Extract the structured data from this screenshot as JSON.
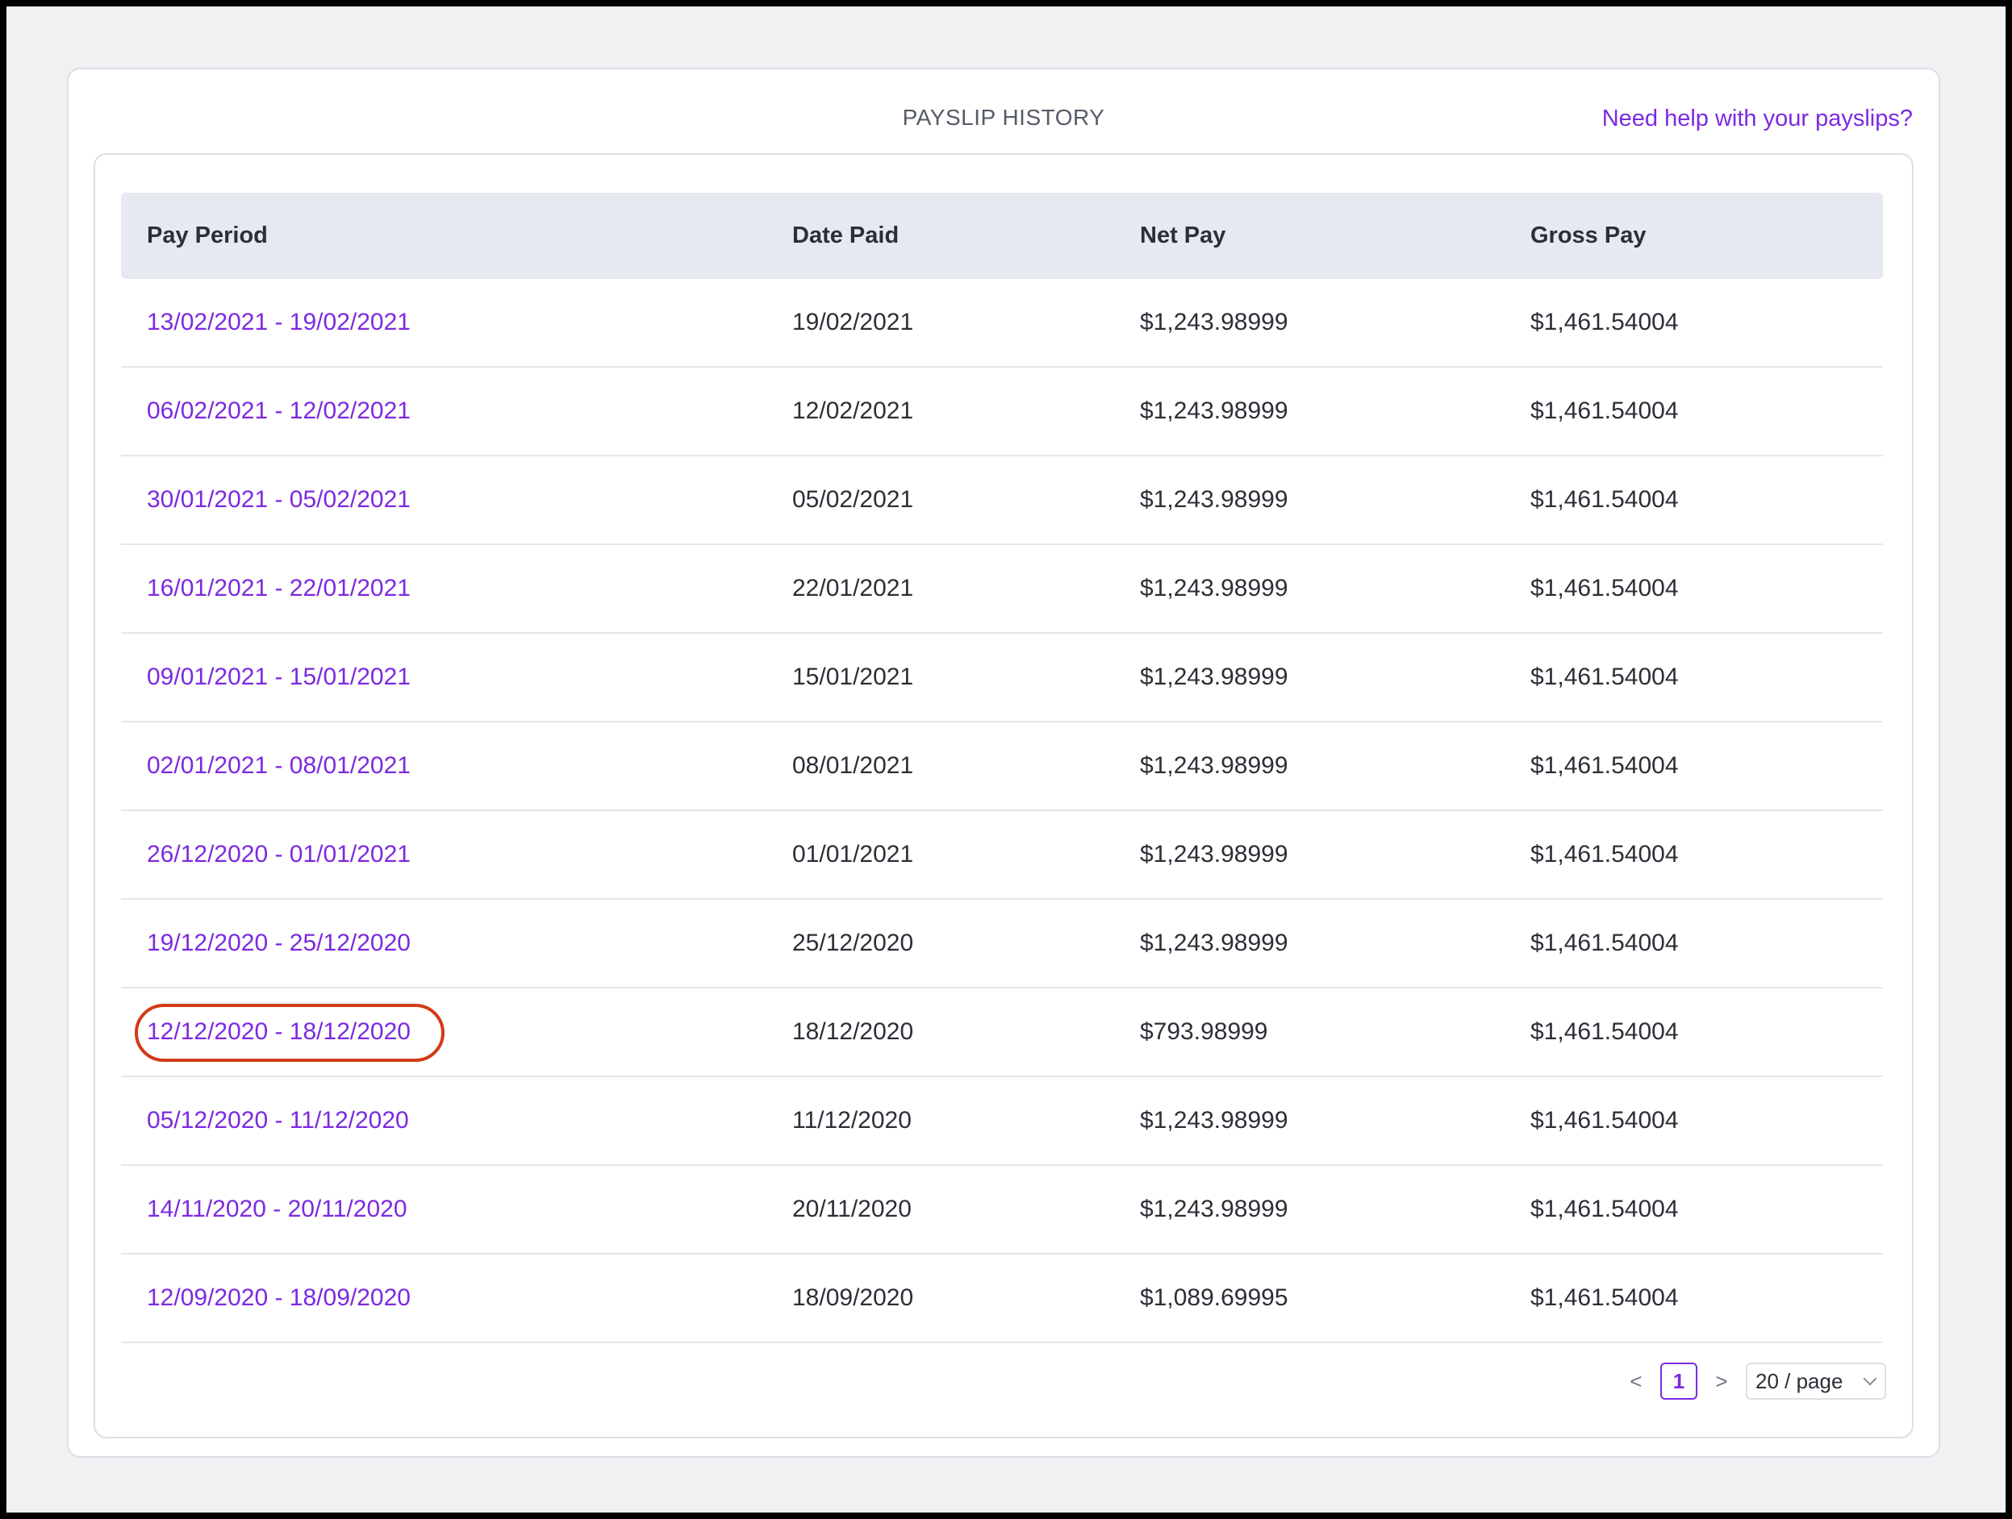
{
  "header": {
    "title": "PAYSLIP HISTORY",
    "help_link": "Need help with your payslips?"
  },
  "table": {
    "columns": [
      "Pay Period",
      "Date Paid",
      "Net Pay",
      "Gross Pay"
    ],
    "rows": [
      {
        "period": "13/02/2021 - 19/02/2021",
        "date_paid": "19/02/2021",
        "net_pay": "$1,243.98999",
        "gross_pay": "$1,461.54004"
      },
      {
        "period": "06/02/2021 - 12/02/2021",
        "date_paid": "12/02/2021",
        "net_pay": "$1,243.98999",
        "gross_pay": "$1,461.54004"
      },
      {
        "period": "30/01/2021 - 05/02/2021",
        "date_paid": "05/02/2021",
        "net_pay": "$1,243.98999",
        "gross_pay": "$1,461.54004"
      },
      {
        "period": "16/01/2021 - 22/01/2021",
        "date_paid": "22/01/2021",
        "net_pay": "$1,243.98999",
        "gross_pay": "$1,461.54004"
      },
      {
        "period": "09/01/2021 - 15/01/2021",
        "date_paid": "15/01/2021",
        "net_pay": "$1,243.98999",
        "gross_pay": "$1,461.54004"
      },
      {
        "period": "02/01/2021 - 08/01/2021",
        "date_paid": "08/01/2021",
        "net_pay": "$1,243.98999",
        "gross_pay": "$1,461.54004"
      },
      {
        "period": "26/12/2020 - 01/01/2021",
        "date_paid": "01/01/2021",
        "net_pay": "$1,243.98999",
        "gross_pay": "$1,461.54004"
      },
      {
        "period": "19/12/2020 - 25/12/2020",
        "date_paid": "25/12/2020",
        "net_pay": "$1,243.98999",
        "gross_pay": "$1,461.54004"
      },
      {
        "period": "12/12/2020 - 18/12/2020",
        "date_paid": "18/12/2020",
        "net_pay": "$793.98999",
        "gross_pay": "$1,461.54004"
      },
      {
        "period": "05/12/2020 - 11/12/2020",
        "date_paid": "11/12/2020",
        "net_pay": "$1,243.98999",
        "gross_pay": "$1,461.54004"
      },
      {
        "period": "14/11/2020 - 20/11/2020",
        "date_paid": "20/11/2020",
        "net_pay": "$1,243.98999",
        "gross_pay": "$1,461.54004"
      },
      {
        "period": "12/09/2020 - 18/09/2020",
        "date_paid": "18/09/2020",
        "net_pay": "$1,089.69995",
        "gross_pay": "$1,461.54004"
      }
    ]
  },
  "pagination": {
    "prev_icon": "<",
    "current_page": "1",
    "next_icon": ">",
    "page_size": "20 / page"
  },
  "icons": {
    "page_size_dropdown": "chevron-down-icon"
  },
  "colors": {
    "link": "#7c2ae0",
    "highlight": "#d23a17",
    "header_bg": "#e6eaf0",
    "page_bg": "#f0f1f3"
  }
}
